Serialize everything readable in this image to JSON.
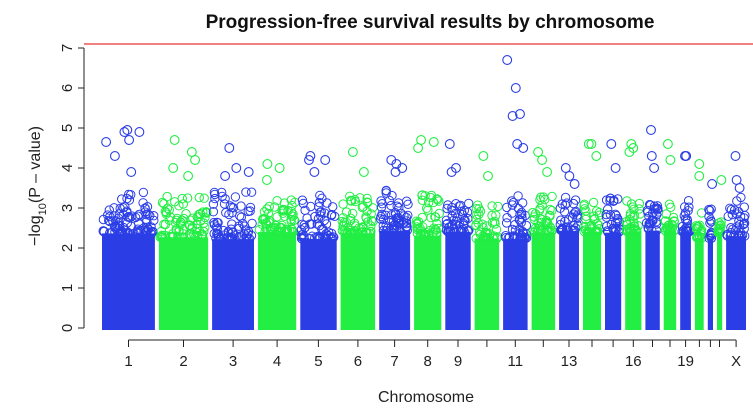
{
  "chart_data": {
    "type": "scatter",
    "subtype": "manhattan",
    "title": "Progression-free survival results by chromosome",
    "xlabel": "Chromosome",
    "ylabel_prefix": "−log",
    "ylabel_sub": "10",
    "ylabel_suffix": "(P – value)",
    "ylim": [
      0,
      7
    ],
    "yticks": [
      0,
      1,
      2,
      3,
      4,
      5,
      6,
      7
    ],
    "x_tick_labels": [
      "1",
      "2",
      "3",
      "4",
      "5",
      "6",
      "7",
      "8",
      "9",
      "11",
      "13",
      "16",
      "19",
      "X"
    ],
    "significance_threshold": 7.1,
    "colors": {
      "odd_chromosome": "#2b3ee6",
      "even_chromosome": "#22ee44",
      "threshold_line": "#f08080"
    },
    "chromosomes": [
      {
        "name": "1",
        "label": "1",
        "color": "blue",
        "body_max": 3.4,
        "peaks": [
          4.9,
          4.7,
          4.65,
          4.95,
          4.9,
          4.3,
          3.9
        ]
      },
      {
        "name": "2",
        "label": "2",
        "color": "green",
        "body_max": 3.3,
        "peaks": [
          4.7,
          4.4,
          4.2,
          4.0,
          3.8
        ]
      },
      {
        "name": "3",
        "label": "3",
        "color": "blue",
        "body_max": 3.5,
        "peaks": [
          4.5,
          4.0,
          3.9,
          3.8
        ]
      },
      {
        "name": "4",
        "label": "4",
        "color": "green",
        "body_max": 3.2,
        "peaks": [
          4.1,
          4.0,
          3.7
        ]
      },
      {
        "name": "5",
        "label": "5",
        "color": "blue",
        "body_max": 3.4,
        "peaks": [
          4.3,
          4.2,
          4.2,
          3.9
        ]
      },
      {
        "name": "6",
        "label": "6",
        "color": "green",
        "body_max": 3.3,
        "peaks": [
          4.4,
          3.9
        ]
      },
      {
        "name": "7",
        "label": "7",
        "color": "blue",
        "body_max": 3.5,
        "peaks": [
          4.2,
          4.1,
          4.0,
          3.9
        ]
      },
      {
        "name": "8",
        "label": "8",
        "color": "green",
        "body_max": 3.4,
        "peaks": [
          4.7,
          4.65,
          4.5
        ]
      },
      {
        "name": "9",
        "label": "9",
        "color": "blue",
        "body_max": 3.2,
        "peaks": [
          4.6,
          4.0,
          3.9
        ]
      },
      {
        "name": "10",
        "label": "",
        "color": "green",
        "body_max": 3.1,
        "peaks": [
          4.3,
          3.8
        ]
      },
      {
        "name": "11",
        "label": "11",
        "color": "blue",
        "body_max": 3.4,
        "peaks": [
          6.7,
          6.0,
          5.35,
          5.3,
          4.6,
          4.5
        ]
      },
      {
        "name": "12",
        "label": "",
        "color": "green",
        "body_max": 3.3,
        "peaks": [
          4.4,
          4.2,
          3.9
        ]
      },
      {
        "name": "13",
        "label": "13",
        "color": "blue",
        "body_max": 3.3,
        "peaks": [
          4.0,
          3.8,
          3.6
        ]
      },
      {
        "name": "14",
        "label": "",
        "color": "green",
        "body_max": 3.2,
        "peaks": [
          4.6,
          4.6,
          4.3
        ]
      },
      {
        "name": "15",
        "label": "",
        "color": "blue",
        "body_max": 3.3,
        "peaks": [
          4.6,
          4.0
        ]
      },
      {
        "name": "16",
        "label": "16",
        "color": "green",
        "body_max": 3.2,
        "peaks": [
          4.6,
          4.5,
          4.4
        ]
      },
      {
        "name": "17",
        "label": "",
        "color": "blue",
        "body_max": 3.3,
        "peaks": [
          4.95,
          4.3,
          4.0
        ]
      },
      {
        "name": "18",
        "label": "",
        "color": "green",
        "body_max": 3.1,
        "peaks": [
          4.6,
          4.2
        ]
      },
      {
        "name": "19",
        "label": "19",
        "color": "blue",
        "body_max": 3.2,
        "peaks": [
          4.3,
          4.3
        ]
      },
      {
        "name": "20",
        "label": "",
        "color": "green",
        "body_max": 3.1,
        "peaks": [
          4.1,
          3.8
        ]
      },
      {
        "name": "21",
        "label": "",
        "color": "blue",
        "body_max": 3.0,
        "peaks": [
          3.6
        ]
      },
      {
        "name": "22",
        "label": "",
        "color": "green",
        "body_max": 3.1,
        "peaks": [
          3.7
        ]
      },
      {
        "name": "X",
        "label": "X",
        "color": "blue",
        "body_max": 3.3,
        "peaks": [
          4.3,
          3.7,
          3.5
        ]
      }
    ]
  }
}
